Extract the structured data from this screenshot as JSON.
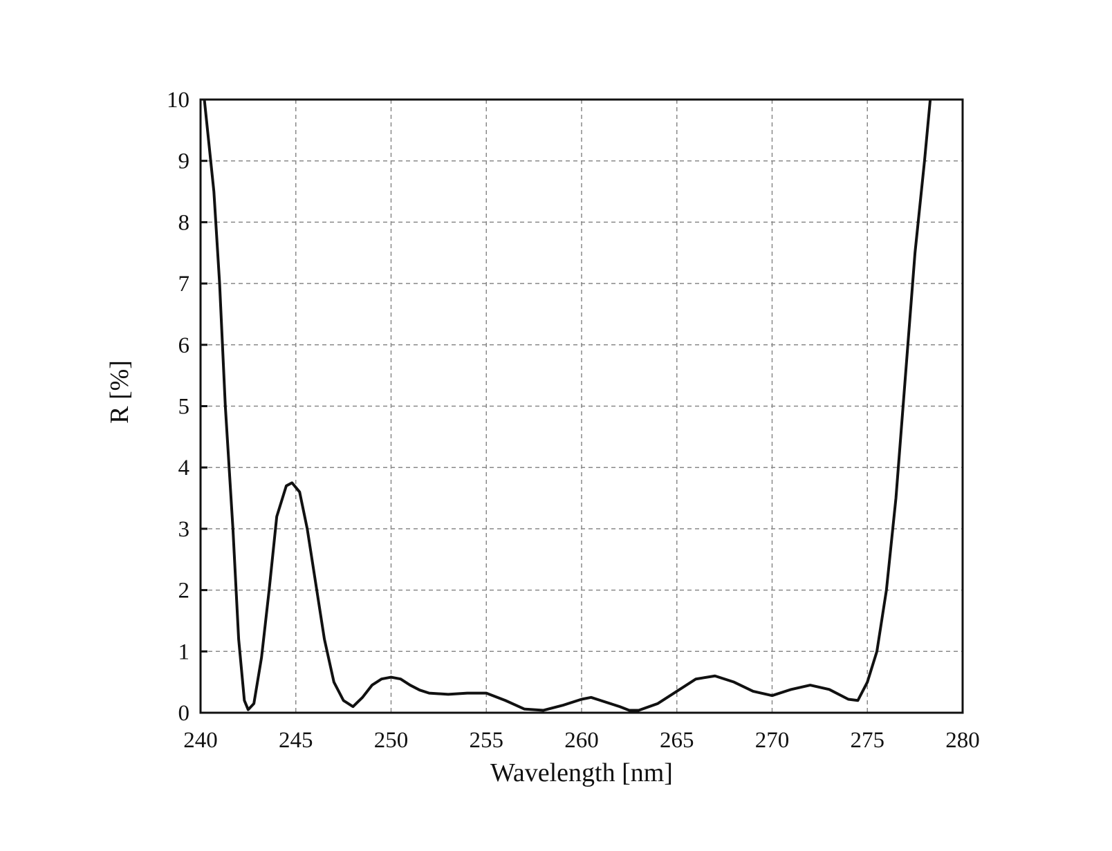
{
  "chart_data": {
    "type": "line",
    "x_label": "Wavelength [nm]",
    "y_label": "R [%]",
    "xlim": [
      240,
      280
    ],
    "ylim": [
      0,
      10
    ],
    "xticks": [
      240,
      245,
      250,
      255,
      260,
      265,
      270,
      275,
      280
    ],
    "yticks": [
      0,
      1,
      2,
      3,
      4,
      5,
      6,
      7,
      8,
      9,
      10
    ],
    "grid": true,
    "series": [
      {
        "name": "R",
        "color": "#111111",
        "x": [
          240.2,
          240.7,
          241,
          241.3,
          241.7,
          242,
          242.3,
          242.5,
          242.8,
          243.2,
          243.6,
          244,
          244.5,
          244.8,
          245.2,
          245.6,
          246,
          246.5,
          247,
          247.5,
          248,
          248.5,
          249,
          249.5,
          250,
          250.5,
          251,
          251.5,
          252,
          253,
          254,
          255,
          256,
          257,
          258,
          259,
          260,
          260.5,
          261,
          262,
          262.5,
          263,
          264,
          265,
          266,
          267,
          268,
          269,
          270,
          271,
          272,
          273,
          274,
          274.5,
          275,
          275.5,
          276,
          276.5,
          277,
          277.5,
          278,
          278.3
        ],
        "values": [
          10,
          8.5,
          7,
          5,
          3,
          1.2,
          0.2,
          0.05,
          0.15,
          0.9,
          2,
          3.2,
          3.7,
          3.75,
          3.6,
          3,
          2.2,
          1.2,
          0.5,
          0.2,
          0.1,
          0.25,
          0.45,
          0.55,
          0.58,
          0.55,
          0.45,
          0.37,
          0.32,
          0.3,
          0.32,
          0.32,
          0.2,
          0.06,
          0.04,
          0.12,
          0.22,
          0.25,
          0.2,
          0.1,
          0.04,
          0.04,
          0.15,
          0.35,
          0.55,
          0.6,
          0.5,
          0.35,
          0.28,
          0.38,
          0.45,
          0.38,
          0.22,
          0.2,
          0.5,
          1,
          2,
          3.5,
          5.5,
          7.5,
          9,
          10
        ]
      }
    ]
  }
}
